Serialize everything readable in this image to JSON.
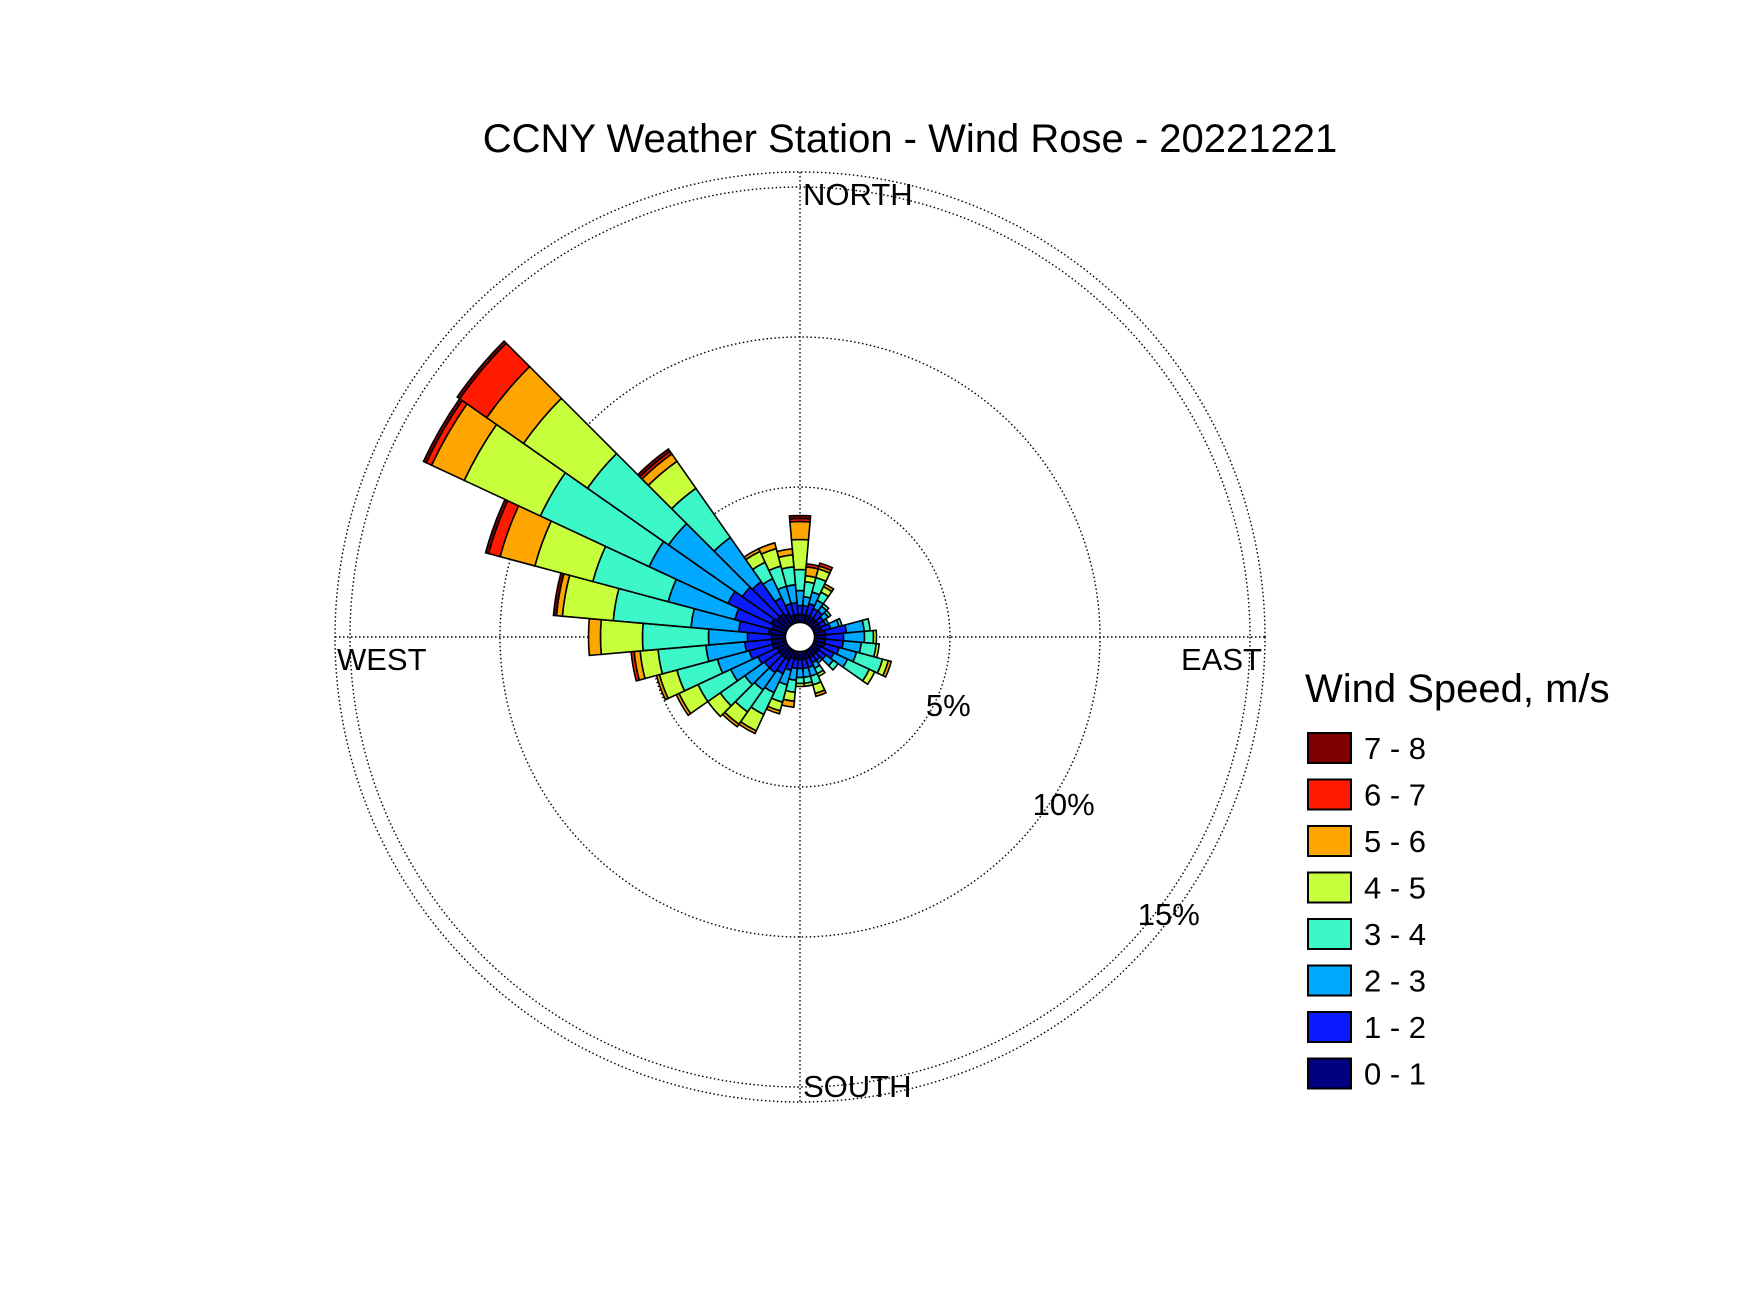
{
  "chart_data": {
    "type": "wind-rose",
    "title": "CCNY Weather Station - Wind Rose - 20221221",
    "direction_labels": {
      "north": "NORTH",
      "east": "EAST",
      "south": "SOUTH",
      "west": "WEST"
    },
    "ring_labels": [
      "5%",
      "10%",
      "15%"
    ],
    "rings_percent": [
      5,
      10,
      15
    ],
    "radial_max_percent": 15.5,
    "center_hole_percent": 0.45,
    "sector_width_deg": 10,
    "legend_title": "Wind Speed, m/s",
    "speed_bins": [
      {
        "label": "0 - 1",
        "color": "#000080"
      },
      {
        "label": "1 - 2",
        "color": "#0a1cff"
      },
      {
        "label": "2 - 3",
        "color": "#00a8ff"
      },
      {
        "label": "3 - 4",
        "color": "#3cf7c8"
      },
      {
        "label": "4 - 5",
        "color": "#c8ff3c"
      },
      {
        "label": "5 - 6",
        "color": "#ffa500"
      },
      {
        "label": "6 - 7",
        "color": "#ff1a00"
      },
      {
        "label": "7 - 8",
        "color": "#800000"
      }
    ],
    "legend_order": [
      "7 - 8",
      "6 - 7",
      "5 - 6",
      "4 - 5",
      "3 - 4",
      "2 - 3",
      "1 - 2",
      "0 - 1"
    ],
    "sectors": [
      {
        "direction": 0,
        "values": [
          0.3,
          0.3,
          0.5,
          0.7,
          1.0,
          0.6,
          0.1,
          0.1
        ]
      },
      {
        "direction": 10,
        "values": [
          0.3,
          0.3,
          0.3,
          0.5,
          0.2,
          0.3,
          0.1,
          0.0
        ]
      },
      {
        "direction": 20,
        "values": [
          0.3,
          0.4,
          0.4,
          0.5,
          0.3,
          0.1,
          0.1,
          0.0
        ]
      },
      {
        "direction": 30,
        "values": [
          0.3,
          0.3,
          0.3,
          0.3,
          0.2,
          0.1,
          0.0,
          0.0
        ]
      },
      {
        "direction": 40,
        "values": [
          0.3,
          0.3,
          0.2,
          0.1,
          0.0,
          0.0,
          0.0,
          0.0
        ]
      },
      {
        "direction": 50,
        "values": [
          0.3,
          0.2,
          0.2,
          0.1,
          0.0,
          0.0,
          0.0,
          0.0
        ]
      },
      {
        "direction": 60,
        "values": [
          0.3,
          0.2,
          0.1,
          0.0,
          0.0,
          0.0,
          0.0,
          0.0
        ]
      },
      {
        "direction": 70,
        "values": [
          0.3,
          0.3,
          0.3,
          0.1,
          0.0,
          0.0,
          0.0,
          0.0
        ]
      },
      {
        "direction": 80,
        "values": [
          0.4,
          0.7,
          0.6,
          0.2,
          0.0,
          0.0,
          0.0,
          0.0
        ]
      },
      {
        "direction": 90,
        "values": [
          0.4,
          0.6,
          0.7,
          0.3,
          0.1,
          0.0,
          0.0,
          0.0
        ]
      },
      {
        "direction": 100,
        "values": [
          0.4,
          0.6,
          0.6,
          0.5,
          0.1,
          0.0,
          0.0,
          0.0
        ]
      },
      {
        "direction": 110,
        "values": [
          0.4,
          0.5,
          0.6,
          0.9,
          0.2,
          0.1,
          0.0,
          0.0
        ]
      },
      {
        "direction": 120,
        "values": [
          0.3,
          0.5,
          0.5,
          0.8,
          0.2,
          0.0,
          0.0,
          0.0
        ]
      },
      {
        "direction": 130,
        "values": [
          0.3,
          0.3,
          0.3,
          0.2,
          0.0,
          0.0,
          0.0,
          0.0
        ]
      },
      {
        "direction": 140,
        "values": [
          0.3,
          0.2,
          0.1,
          0.0,
          0.0,
          0.0,
          0.0,
          0.0
        ]
      },
      {
        "direction": 150,
        "values": [
          0.3,
          0.2,
          0.2,
          0.2,
          0.1,
          0.0,
          0.0,
          0.0
        ]
      },
      {
        "direction": 160,
        "values": [
          0.3,
          0.3,
          0.3,
          0.3,
          0.3,
          0.1,
          0.0,
          0.0
        ]
      },
      {
        "direction": 170,
        "values": [
          0.3,
          0.3,
          0.3,
          0.2,
          0.1,
          0.0,
          0.0,
          0.0
        ]
      },
      {
        "direction": 180,
        "values": [
          0.3,
          0.3,
          0.3,
          0.2,
          0.1,
          0.0,
          0.0,
          0.0
        ]
      },
      {
        "direction": 190,
        "values": [
          0.3,
          0.3,
          0.4,
          0.4,
          0.3,
          0.2,
          0.0,
          0.0
        ]
      },
      {
        "direction": 200,
        "values": [
          0.3,
          0.4,
          0.5,
          0.6,
          0.3,
          0.1,
          0.0,
          0.0
        ]
      },
      {
        "direction": 210,
        "values": [
          0.4,
          0.5,
          0.7,
          0.8,
          0.6,
          0.1,
          0.0,
          0.0
        ]
      },
      {
        "direction": 220,
        "values": [
          0.4,
          0.6,
          0.7,
          0.9,
          0.5,
          0.1,
          0.0,
          0.0
        ]
      },
      {
        "direction": 230,
        "values": [
          0.4,
          0.6,
          0.8,
          1.0,
          0.5,
          0.0,
          0.0,
          0.0
        ]
      },
      {
        "direction": 240,
        "values": [
          0.4,
          0.7,
          1.0,
          1.2,
          0.7,
          0.1,
          0.0,
          0.0
        ]
      },
      {
        "direction": 250,
        "values": [
          0.5,
          0.8,
          1.1,
          1.4,
          0.6,
          0.1,
          0.0,
          0.0
        ]
      },
      {
        "direction": 260,
        "values": [
          0.5,
          0.9,
          1.3,
          1.6,
          0.6,
          0.2,
          0.1,
          0.0
        ]
      },
      {
        "direction": 270,
        "values": [
          0.5,
          0.8,
          1.3,
          2.2,
          1.4,
          0.4,
          0.0,
          0.0
        ]
      },
      {
        "direction": 280,
        "values": [
          0.6,
          1.0,
          1.6,
          2.6,
          1.7,
          0.2,
          0.0,
          0.1
        ]
      },
      {
        "direction": 290,
        "values": [
          0.5,
          1.3,
          2.3,
          2.6,
          2.0,
          1.2,
          0.4,
          0.1
        ]
      },
      {
        "direction": 300,
        "values": [
          0.6,
          1.6,
          2.9,
          4.0,
          2.8,
          1.2,
          0.2,
          0.1
        ]
      },
      {
        "direction": 310,
        "values": [
          0.5,
          1.4,
          3.0,
          3.3,
          2.6,
          1.5,
          1.1,
          0.1
        ]
      },
      {
        "direction": 320,
        "values": [
          0.5,
          1.3,
          1.8,
          2.0,
          1.1,
          0.3,
          0.1,
          0.1
        ]
      },
      {
        "direction": 330,
        "values": [
          0.4,
          0.6,
          0.7,
          0.6,
          0.4,
          0.1,
          0.0,
          0.0
        ]
      },
      {
        "direction": 340,
        "values": [
          0.3,
          0.4,
          0.6,
          0.7,
          0.6,
          0.2,
          0.0,
          0.0
        ]
      },
      {
        "direction": 350,
        "values": [
          0.3,
          0.4,
          0.6,
          0.6,
          0.4,
          0.2,
          0.0,
          0.0
        ]
      }
    ]
  }
}
